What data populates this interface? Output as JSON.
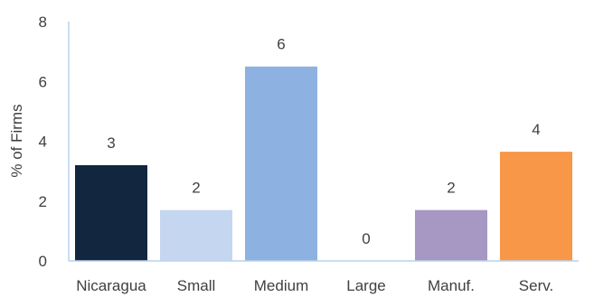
{
  "chart_data": {
    "type": "bar",
    "title": "",
    "xlabel": "",
    "ylabel": "% of Firms",
    "categories": [
      "Nicaragua",
      "Small",
      "Medium",
      "Large",
      "Manuf.",
      "Serv."
    ],
    "values": [
      3.2,
      1.7,
      6.5,
      0.0,
      1.7,
      3.65
    ],
    "data_labels": [
      "3",
      "2",
      "6",
      "0",
      "2",
      "4"
    ],
    "colors": [
      "#13263f",
      "#c5d7f0",
      "#8db2e1",
      "#ffffff",
      "#a697c3",
      "#f79747"
    ],
    "ylim": [
      0,
      8
    ],
    "yticks": [
      0,
      2,
      4,
      6,
      8
    ],
    "y_tick_labels": [
      "0",
      "2",
      "4",
      "6",
      "8"
    ],
    "grid": false,
    "legend": "none",
    "axis_color": "#b9d0ec"
  }
}
